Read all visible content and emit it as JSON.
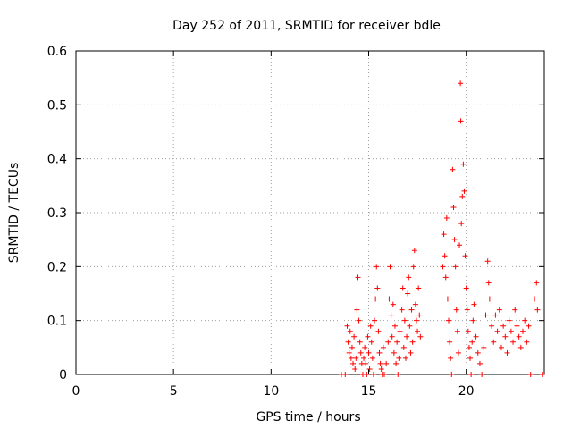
{
  "chart_data": {
    "type": "scatter",
    "title": "Day 252 of 2011, SRMTID for receiver bdle",
    "xlabel": "GPS time / hours",
    "ylabel": "SRMTID / TECUs",
    "xlim": [
      0,
      24
    ],
    "ylim": [
      0,
      0.6
    ],
    "xticks": [
      0,
      5,
      10,
      15,
      20
    ],
    "yticks": [
      0,
      0.1,
      0.2,
      0.3,
      0.4,
      0.5,
      0.6
    ],
    "xtick_labels": [
      "0",
      "5",
      "10",
      "15",
      "20"
    ],
    "ytick_labels": [
      "0",
      "0.1",
      "0.2",
      "0.3",
      "0.4",
      "0.5",
      "0.6"
    ],
    "grid": true,
    "marker": "+",
    "color": "#ff0000",
    "series": [
      {
        "points": [
          [
            13.6,
            0.0
          ],
          [
            13.8,
            0.0
          ],
          [
            13.9,
            0.09
          ],
          [
            13.95,
            0.06
          ],
          [
            14.0,
            0.04
          ],
          [
            14.05,
            0.08
          ],
          [
            14.1,
            0.03
          ],
          [
            14.15,
            0.05
          ],
          [
            14.2,
            0.02
          ],
          [
            14.25,
            0.07
          ],
          [
            14.3,
            0.01
          ],
          [
            14.35,
            0.03
          ],
          [
            14.4,
            0.12
          ],
          [
            14.45,
            0.18
          ],
          [
            14.5,
            0.1
          ],
          [
            14.55,
            0.06
          ],
          [
            14.6,
            0.04
          ],
          [
            14.65,
            0.02
          ],
          [
            14.7,
            0.0
          ],
          [
            14.75,
            0.03
          ],
          [
            14.8,
            0.05
          ],
          [
            14.85,
            0.02
          ],
          [
            14.9,
            0.0
          ],
          [
            14.95,
            0.07
          ],
          [
            15.0,
            0.04
          ],
          [
            15.05,
            0.01
          ],
          [
            15.1,
            0.09
          ],
          [
            15.15,
            0.06
          ],
          [
            15.2,
            0.03
          ],
          [
            15.25,
            0.0
          ],
          [
            15.3,
            0.1
          ],
          [
            15.35,
            0.14
          ],
          [
            15.4,
            0.2
          ],
          [
            15.45,
            0.16
          ],
          [
            15.5,
            0.08
          ],
          [
            15.55,
            0.04
          ],
          [
            15.6,
            0.02
          ],
          [
            15.65,
            0.01
          ],
          [
            15.7,
            0.0
          ],
          [
            15.75,
            0.05
          ],
          [
            15.8,
            0.0
          ],
          [
            15.9,
            0.02
          ],
          [
            16.0,
            0.06
          ],
          [
            16.05,
            0.14
          ],
          [
            16.1,
            0.2
          ],
          [
            16.15,
            0.11
          ],
          [
            16.2,
            0.07
          ],
          [
            16.25,
            0.13
          ],
          [
            16.3,
            0.04
          ],
          [
            16.35,
            0.09
          ],
          [
            16.4,
            0.02
          ],
          [
            16.45,
            0.06
          ],
          [
            16.5,
            0.0
          ],
          [
            16.55,
            0.03
          ],
          [
            16.6,
            0.08
          ],
          [
            16.7,
            0.12
          ],
          [
            16.75,
            0.16
          ],
          [
            16.8,
            0.05
          ],
          [
            16.85,
            0.1
          ],
          [
            16.9,
            0.03
          ],
          [
            16.95,
            0.07
          ],
          [
            17.0,
            0.15
          ],
          [
            17.05,
            0.18
          ],
          [
            17.1,
            0.09
          ],
          [
            17.15,
            0.04
          ],
          [
            17.2,
            0.12
          ],
          [
            17.25,
            0.06
          ],
          [
            17.3,
            0.2
          ],
          [
            17.35,
            0.23
          ],
          [
            17.4,
            0.13
          ],
          [
            17.45,
            0.1
          ],
          [
            17.5,
            0.08
          ],
          [
            17.55,
            0.16
          ],
          [
            17.6,
            0.11
          ],
          [
            17.65,
            0.07
          ],
          [
            18.8,
            0.2
          ],
          [
            18.85,
            0.26
          ],
          [
            18.9,
            0.22
          ],
          [
            18.95,
            0.18
          ],
          [
            19.0,
            0.29
          ],
          [
            19.05,
            0.14
          ],
          [
            19.1,
            0.1
          ],
          [
            19.15,
            0.06
          ],
          [
            19.2,
            0.03
          ],
          [
            19.25,
            0.0
          ],
          [
            19.3,
            0.38
          ],
          [
            19.35,
            0.31
          ],
          [
            19.4,
            0.25
          ],
          [
            19.45,
            0.2
          ],
          [
            19.5,
            0.12
          ],
          [
            19.55,
            0.08
          ],
          [
            19.6,
            0.04
          ],
          [
            19.65,
            0.24
          ],
          [
            19.7,
            0.54
          ],
          [
            19.72,
            0.47
          ],
          [
            19.75,
            0.28
          ],
          [
            19.8,
            0.33
          ],
          [
            19.85,
            0.39
          ],
          [
            19.9,
            0.34
          ],
          [
            19.95,
            0.22
          ],
          [
            20.0,
            0.16
          ],
          [
            20.05,
            0.12
          ],
          [
            20.1,
            0.08
          ],
          [
            20.15,
            0.05
          ],
          [
            20.2,
            0.03
          ],
          [
            20.25,
            0.0
          ],
          [
            20.3,
            0.06
          ],
          [
            20.35,
            0.1
          ],
          [
            20.4,
            0.13
          ],
          [
            20.5,
            0.07
          ],
          [
            20.6,
            0.04
          ],
          [
            20.7,
            0.02
          ],
          [
            20.8,
            0.0
          ],
          [
            20.9,
            0.05
          ],
          [
            21.0,
            0.11
          ],
          [
            21.1,
            0.21
          ],
          [
            21.15,
            0.17
          ],
          [
            21.2,
            0.14
          ],
          [
            21.3,
            0.09
          ],
          [
            21.4,
            0.06
          ],
          [
            21.5,
            0.11
          ],
          [
            21.6,
            0.08
          ],
          [
            21.7,
            0.12
          ],
          [
            21.8,
            0.05
          ],
          [
            21.9,
            0.09
          ],
          [
            22.0,
            0.07
          ],
          [
            22.1,
            0.04
          ],
          [
            22.2,
            0.1
          ],
          [
            22.3,
            0.08
          ],
          [
            22.4,
            0.06
          ],
          [
            22.5,
            0.12
          ],
          [
            22.6,
            0.09
          ],
          [
            22.7,
            0.07
          ],
          [
            22.8,
            0.05
          ],
          [
            22.9,
            0.08
          ],
          [
            23.0,
            0.1
          ],
          [
            23.1,
            0.06
          ],
          [
            23.2,
            0.09
          ],
          [
            23.3,
            0.0
          ],
          [
            23.5,
            0.14
          ],
          [
            23.6,
            0.17
          ],
          [
            23.65,
            0.12
          ],
          [
            23.9,
            0.0
          ]
        ]
      }
    ]
  }
}
